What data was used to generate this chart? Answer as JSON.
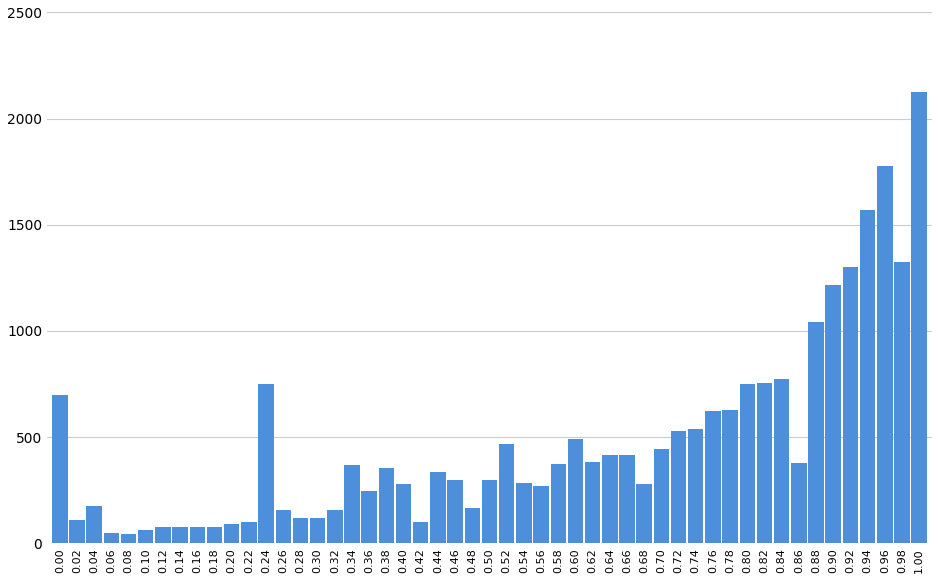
{
  "categories": [
    "0.00",
    "0.02",
    "0.04",
    "0.06",
    "0.08",
    "0.10",
    "0.12",
    "0.14",
    "0.16",
    "0.18",
    "0.20",
    "0.22",
    "0.24",
    "0.26",
    "0.28",
    "0.30",
    "0.32",
    "0.34",
    "0.36",
    "0.38",
    "0.40",
    "0.42",
    "0.44",
    "0.46",
    "0.48",
    "0.50",
    "0.52",
    "0.54",
    "0.56",
    "0.58",
    "0.60",
    "0.62",
    "0.64",
    "0.66",
    "0.68",
    "0.70",
    "0.72",
    "0.74",
    "0.76",
    "0.78",
    "0.80",
    "0.82",
    "0.84",
    "0.86",
    "0.88",
    "0.90",
    "0.92",
    "0.94",
    "0.96",
    "0.98",
    "1.00"
  ],
  "values": [
    700,
    110,
    175,
    50,
    45,
    65,
    75,
    75,
    75,
    75,
    90,
    100,
    750,
    155,
    120,
    120,
    155,
    370,
    245,
    355,
    280,
    100,
    335,
    300,
    165,
    300,
    470,
    285,
    270,
    375,
    490,
    385,
    415,
    415,
    280,
    445,
    530,
    540,
    625,
    630,
    750,
    755,
    775,
    380,
    1040,
    1215,
    1300,
    1570,
    1775,
    1325,
    2125
  ],
  "bar_color": "#4d8fdb",
  "background_color": "#ffffff",
  "grid_color": "#cccccc",
  "ylim": [
    0,
    2500
  ],
  "yticks": [
    0,
    500,
    1000,
    1500,
    2000,
    2500
  ],
  "xlim": [
    -0.015,
    1.015
  ]
}
